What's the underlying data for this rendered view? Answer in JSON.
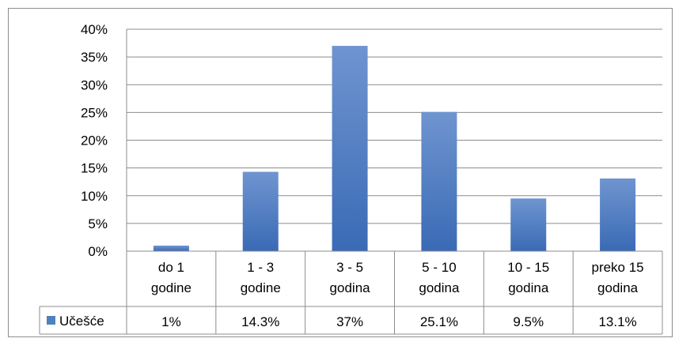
{
  "chart_data": {
    "type": "bar",
    "categories": [
      [
        "do 1",
        "godine"
      ],
      [
        "1 - 3",
        "godine"
      ],
      [
        "3 - 5",
        "godina"
      ],
      [
        "5 - 10",
        "godina"
      ],
      [
        "10 - 15",
        "godina"
      ],
      [
        "preko 15",
        "godina"
      ]
    ],
    "series": [
      {
        "name": "Učešće",
        "values": [
          1,
          14.3,
          37,
          25.1,
          9.5,
          13.1
        ],
        "value_labels": [
          "1%",
          "14.3%",
          "37%",
          "25.1%",
          "9.5%",
          "13.1%"
        ],
        "color": "#4f81bd"
      }
    ],
    "ylim": [
      0,
      40
    ],
    "y_ticks": [
      "0%",
      "5%",
      "10%",
      "15%",
      "20%",
      "25%",
      "30%",
      "35%",
      "40%"
    ],
    "y_tick_values": [
      0,
      5,
      10,
      15,
      20,
      25,
      30,
      35,
      40
    ],
    "grid": true,
    "legend": "in data table",
    "data_table": true
  },
  "colors": {
    "bar_light": "#6f95d0",
    "bar_dark": "#3a6ab5",
    "gridline": "#8c8c8c",
    "table_border": "#8c8c8c"
  }
}
